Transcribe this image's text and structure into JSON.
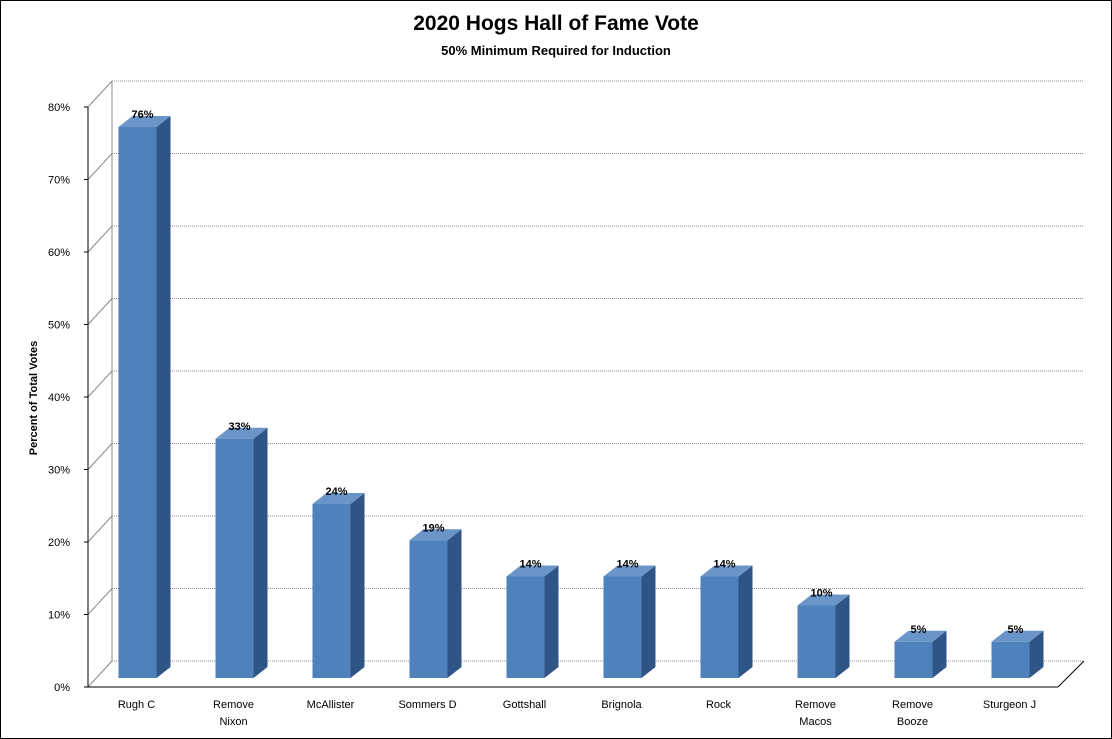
{
  "chart_data": {
    "type": "bar",
    "title": "2020 Hogs Hall of Fame Vote",
    "subtitle": "50% Minimum Required for Induction",
    "ylabel": "Percent of Total Votes",
    "xlabel": "",
    "categories": [
      [
        "Rugh C"
      ],
      [
        "Remove",
        "Nixon"
      ],
      [
        "McAllister"
      ],
      [
        "Sommers D"
      ],
      [
        "Gottshall"
      ],
      [
        "Brignola"
      ],
      [
        "Rock"
      ],
      [
        "Remove",
        "Macos"
      ],
      [
        "Remove",
        "Booze"
      ],
      [
        "Sturgeon J"
      ]
    ],
    "values": [
      76,
      33,
      24,
      19,
      14,
      14,
      14,
      10,
      5,
      5
    ],
    "data_labels": [
      "76%",
      "33%",
      "24%",
      "19%",
      "14%",
      "14%",
      "14%",
      "10%",
      "5%",
      "5%"
    ],
    "ylim": [
      0,
      80
    ],
    "yticks": [
      0,
      10,
      20,
      30,
      40,
      50,
      60,
      70,
      80
    ],
    "ytick_labels": [
      "0%",
      "10%",
      "20%",
      "30%",
      "40%",
      "50%",
      "60%",
      "70%",
      "80%"
    ],
    "grid": true,
    "legend": false,
    "style": "3d-column",
    "colors": {
      "bar_front": "#4F81BD",
      "bar_top": "#6A95C8",
      "bar_side": "#2F5486",
      "grid": "#888888"
    }
  }
}
